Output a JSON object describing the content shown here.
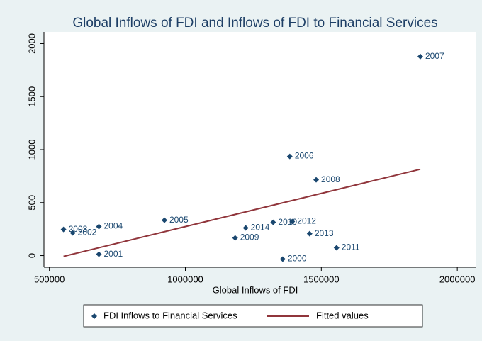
{
  "chart_data": {
    "type": "scatter",
    "title": "Global Inflows of FDI and Inflows of FDI to Financial Services",
    "x_label": "Global Inflows of FDI",
    "xlim": [
      480000,
      2070000
    ],
    "xticks": [
      500000,
      1000000,
      1500000,
      2000000
    ],
    "ylim": [
      -110,
      2110
    ],
    "yticks": [
      0,
      500,
      1000,
      1500,
      2000
    ],
    "series": [
      {
        "name": "FDI Inflows to Financial Services",
        "kind": "scatter",
        "color": "#1a476f",
        "x": [
          552000,
          586000,
          682000,
          682000,
          923000,
          1222000,
          1183000,
          1323000,
          1393000,
          1457000,
          1556000,
          1358000,
          1384000,
          1481000,
          1864000
        ],
        "values": [
          247,
          214,
          274,
          13,
          334,
          261,
          167,
          314,
          321,
          207,
          74,
          -33,
          936,
          715,
          1878
        ],
        "labels": [
          "2003",
          "2002",
          "2004",
          "2001",
          "2005",
          "2014",
          "2009",
          "2010",
          "2012",
          "2013",
          "2011",
          "2000",
          "2006",
          "2008",
          "2007"
        ]
      },
      {
        "name": "Fitted values",
        "kind": "line",
        "color": "#90353b",
        "x": [
          552000,
          1864000
        ],
        "values": [
          -7,
          815
        ]
      }
    ]
  }
}
